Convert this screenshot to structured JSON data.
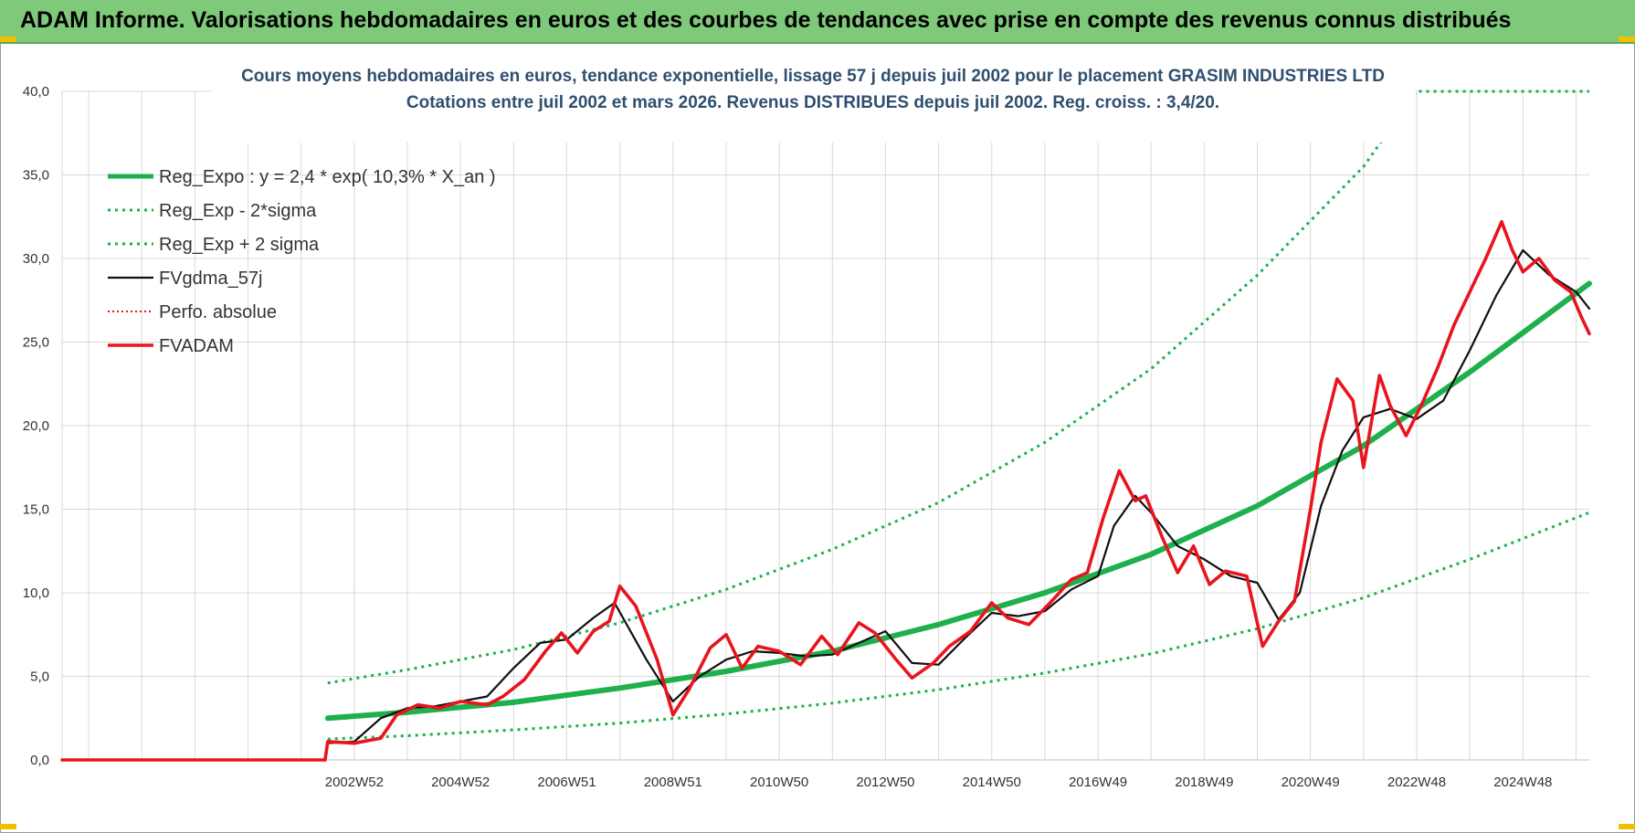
{
  "header": {
    "title": "ADAM Informe. Valorisations hebdomadaires en euros et des courbes de tendances avec prise en compte des revenus connus distribués"
  },
  "colors": {
    "banner": "#7fc97a",
    "green": "#1db04c",
    "red": "#e8141e",
    "black": "#111111",
    "grid": "#d9d9d9"
  },
  "chart_data": {
    "type": "line",
    "title": "Cours moyens hebdomadaires en euros, tendance exponentielle, lissage 57 j depuis juil 2002 pour le placement GRASIM INDUSTRIES LTD",
    "subtitle": "Cotations entre juil 2002 et mars 2026. Revenus DISTRIBUES depuis juil 2002. Reg. croiss. : 3,4/20.",
    "xlabel": "",
    "ylabel": "",
    "ylim": [
      0,
      40
    ],
    "yticks": [
      "0,0",
      "5,0",
      "10,0",
      "15,0",
      "20,0",
      "25,0",
      "30,0",
      "35,0",
      "40,0"
    ],
    "xlim": [
      1997.5,
      2026.25
    ],
    "xticks": [
      {
        "label": "2002W52",
        "x": 2003.0
      },
      {
        "label": "2004W52",
        "x": 2005.0
      },
      {
        "label": "2006W51",
        "x": 2007.0
      },
      {
        "label": "2008W51",
        "x": 2009.0
      },
      {
        "label": "2010W50",
        "x": 2011.0
      },
      {
        "label": "2012W50",
        "x": 2013.0
      },
      {
        "label": "2014W50",
        "x": 2015.0
      },
      {
        "label": "2016W49",
        "x": 2017.0
      },
      {
        "label": "2018W49",
        "x": 2019.0
      },
      {
        "label": "2020W49",
        "x": 2021.0
      },
      {
        "label": "2022W48",
        "x": 2023.0
      },
      {
        "label": "2024W48",
        "x": 2025.0
      }
    ],
    "grid": true,
    "legend_position": "top-left",
    "series": [
      {
        "name": "Reg_Expo : y = 2,4 * exp( 10,3% *  X_an )",
        "style": "solid-thick",
        "color": "#1db04c",
        "x": [
          2002.5,
          2004,
          2006,
          2008,
          2010,
          2012,
          2014,
          2016,
          2018,
          2020,
          2022,
          2024,
          2026.25
        ],
        "y": [
          2.5,
          2.85,
          3.45,
          4.3,
          5.3,
          6.5,
          8.1,
          10.0,
          12.3,
          15.2,
          18.8,
          23.2,
          28.5
        ]
      },
      {
        "name": "Reg_Exp - 2*sigma",
        "style": "dotted",
        "color": "#1db04c",
        "x": [
          2002.5,
          2004,
          2006,
          2008,
          2010,
          2012,
          2014,
          2016,
          2018,
          2020,
          2022,
          2024,
          2026.25
        ],
        "y": [
          1.25,
          1.45,
          1.8,
          2.2,
          2.75,
          3.4,
          4.2,
          5.2,
          6.35,
          7.85,
          9.7,
          12.0,
          14.8
        ]
      },
      {
        "name": "Reg_Exp + 2 sigma",
        "style": "dotted",
        "color": "#1db04c",
        "x": [
          2002.5,
          2004,
          2006,
          2008,
          2010,
          2012,
          2014,
          2016,
          2018,
          2020,
          2022,
          2023.0,
          2026.25
        ],
        "y": [
          4.6,
          5.4,
          6.6,
          8.2,
          10.2,
          12.6,
          15.4,
          19.0,
          23.4,
          29.0,
          35.5,
          40.0,
          40.0
        ]
      },
      {
        "name": "FVgdma_57j",
        "style": "solid",
        "color": "#111111",
        "x": [
          2002.5,
          2003.0,
          2003.5,
          2004.0,
          2004.5,
          2005.0,
          2005.5,
          2006.0,
          2006.5,
          2007.0,
          2007.5,
          2007.9,
          2008.5,
          2009.0,
          2009.5,
          2010.0,
          2010.5,
          2011.0,
          2011.5,
          2012.0,
          2012.5,
          2013.0,
          2013.5,
          2014.0,
          2014.5,
          2015.0,
          2015.5,
          2016.0,
          2016.5,
          2017.0,
          2017.3,
          2017.7,
          2018.0,
          2018.5,
          2019.0,
          2019.5,
          2020.0,
          2020.4,
          2020.8,
          2021.2,
          2021.6,
          2022.0,
          2022.5,
          2023.0,
          2023.5,
          2024.0,
          2024.5,
          2025.0,
          2025.5,
          2026.0,
          2026.25
        ],
        "y": [
          1.0,
          1.1,
          2.5,
          3.1,
          3.2,
          3.5,
          3.8,
          5.5,
          7.0,
          7.2,
          8.5,
          9.4,
          6.0,
          3.5,
          5.0,
          6.0,
          6.5,
          6.4,
          6.2,
          6.3,
          7.0,
          7.7,
          5.8,
          5.7,
          7.3,
          8.8,
          8.6,
          8.9,
          10.2,
          11.0,
          14.0,
          15.8,
          14.8,
          12.8,
          12.0,
          11.0,
          10.6,
          8.4,
          10.0,
          15.2,
          18.5,
          20.5,
          21.0,
          20.4,
          21.5,
          24.5,
          27.8,
          30.5,
          29.0,
          28.0,
          27.0
        ]
      },
      {
        "name": "Perfo. absolue",
        "style": "dotted",
        "color": "#e8141e",
        "x": [
          1997.5,
          2002.45,
          2002.5,
          2003.0,
          2003.5,
          2004.0,
          2004.5,
          2005.0,
          2005.5,
          2006.0,
          2006.5,
          2007.0,
          2007.5,
          2007.9,
          2008.5,
          2009.0,
          2009.5,
          2010.0,
          2010.5,
          2011.0,
          2011.5,
          2012.0,
          2012.5,
          2013.0,
          2013.5,
          2014.0,
          2014.5,
          2015.0,
          2015.5,
          2016.0,
          2016.5,
          2017.0,
          2017.3,
          2017.7,
          2018.0,
          2018.5,
          2019.0,
          2019.5,
          2020.0,
          2020.4,
          2020.8,
          2021.2,
          2021.6,
          2022.0,
          2022.5,
          2023.0,
          2023.5,
          2024.0,
          2024.5,
          2025.0,
          2025.5,
          2026.0,
          2026.25
        ],
        "y": [
          0.0,
          0.0,
          1.0,
          1.1,
          2.5,
          3.1,
          3.2,
          3.5,
          3.8,
          5.5,
          7.0,
          7.2,
          8.5,
          9.4,
          6.0,
          3.5,
          5.0,
          6.0,
          6.5,
          6.4,
          6.2,
          6.3,
          7.0,
          7.7,
          5.8,
          5.7,
          7.3,
          8.8,
          8.6,
          8.9,
          10.2,
          11.0,
          14.0,
          15.8,
          14.8,
          12.8,
          12.0,
          11.0,
          10.6,
          8.4,
          10.0,
          15.2,
          18.5,
          20.5,
          21.0,
          20.4,
          21.5,
          24.5,
          27.8,
          30.5,
          29.0,
          28.0,
          27.0
        ]
      },
      {
        "name": "FVADAM",
        "style": "solid-thick",
        "color": "#e8141e",
        "x": [
          1997.5,
          2002.45,
          2002.5,
          2003.0,
          2003.5,
          2003.8,
          2004.2,
          2004.6,
          2005.0,
          2005.5,
          2005.8,
          2006.2,
          2006.6,
          2006.9,
          2007.2,
          2007.5,
          2007.8,
          2008.0,
          2008.3,
          2008.7,
          2009.0,
          2009.3,
          2009.7,
          2010.0,
          2010.3,
          2010.6,
          2011.0,
          2011.4,
          2011.8,
          2012.1,
          2012.5,
          2012.8,
          2013.2,
          2013.5,
          2013.9,
          2014.2,
          2014.6,
          2015.0,
          2015.3,
          2015.7,
          2016.1,
          2016.5,
          2016.8,
          2017.1,
          2017.4,
          2017.7,
          2017.9,
          2018.2,
          2018.5,
          2018.8,
          2019.1,
          2019.4,
          2019.8,
          2020.1,
          2020.4,
          2020.7,
          2021.0,
          2021.2,
          2021.5,
          2021.8,
          2022.0,
          2022.3,
          2022.5,
          2022.8,
          2023.1,
          2023.4,
          2023.7,
          2024.0,
          2024.3,
          2024.6,
          2024.8,
          2025.0,
          2025.3,
          2025.6,
          2025.9,
          2026.1,
          2026.25
        ],
        "y": [
          0.0,
          0.0,
          1.1,
          1.0,
          1.3,
          2.7,
          3.3,
          3.1,
          3.5,
          3.3,
          3.8,
          4.8,
          6.5,
          7.6,
          6.4,
          7.7,
          8.3,
          10.4,
          9.2,
          6.0,
          2.7,
          4.2,
          6.7,
          7.5,
          5.5,
          6.8,
          6.5,
          5.7,
          7.4,
          6.3,
          8.2,
          7.6,
          6.0,
          4.9,
          5.8,
          6.8,
          7.7,
          9.4,
          8.5,
          8.1,
          9.4,
          10.8,
          11.2,
          14.5,
          17.3,
          15.5,
          15.8,
          13.4,
          11.2,
          12.8,
          10.5,
          11.3,
          11.0,
          6.8,
          8.3,
          9.5,
          15.0,
          19.0,
          22.8,
          21.5,
          17.5,
          23.0,
          21.2,
          19.4,
          21.3,
          23.5,
          26.0,
          28.0,
          30.0,
          32.2,
          30.5,
          29.2,
          30.0,
          28.7,
          28.0,
          26.5,
          25.5
        ]
      }
    ]
  }
}
